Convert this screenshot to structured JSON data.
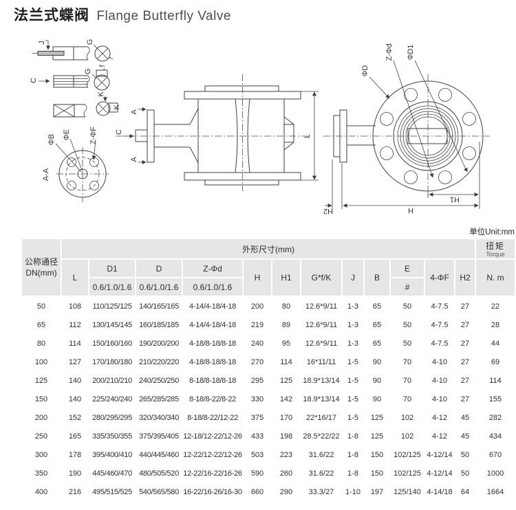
{
  "page": {
    "title_zh": "法兰式蝶阀",
    "title_en": "Flange Butterfly Valve",
    "unit_note": "单位Unit:mm"
  },
  "drawing": {
    "labels": {
      "j": "J",
      "g": "G",
      "c": "C",
      "f": "f",
      "k": "K",
      "phi_b": "ΦB",
      "phi_e": "ΦE",
      "z_phi_f": "Z-ΦF",
      "section": "A-A",
      "a": "A",
      "l": "L",
      "phi_d": "ΦD",
      "z_phi_d": "Z-Φd",
      "phi_d1": "ΦD1",
      "h": "H",
      "h1": "H1",
      "h2": "H2"
    }
  },
  "table": {
    "headers": {
      "dn_zh": "公称通径",
      "dn_en": "DN(mm)",
      "outline": "外形尺寸(mm)",
      "torque_zh": "扭矩",
      "torque_en": "Torque",
      "l": "L",
      "d1": "D1",
      "d": "D",
      "z_phi_d": "Z-Φd",
      "pn": "0.6/1.0/1.6",
      "h": "H",
      "h1": "H1",
      "gfk": "G*f/K",
      "j": "J",
      "b": "B",
      "e": "E",
      "hash": "#",
      "f4": "4-ΦF",
      "h2": "H2",
      "nm": "N. m"
    },
    "rows": [
      [
        "50",
        "108",
        "110/125/125",
        "140/165/165",
        "4-14/4-18/4-18",
        "200",
        "80",
        "12.6*9/11",
        "1-3",
        "65",
        "50",
        "4-7.5",
        "27",
        "22"
      ],
      [
        "65",
        "112",
        "130/145/145",
        "160/185/185",
        "4-14/4-18/4-18",
        "219",
        "89",
        "12.6*9/11",
        "1-3",
        "65",
        "50",
        "4-7.5",
        "27",
        "28"
      ],
      [
        "80",
        "114",
        "150/160/160",
        "190/200/200",
        "4-18/8-18/8-18",
        "240",
        "95",
        "12.6*9/11",
        "1-3",
        "65",
        "50",
        "4-7.5",
        "27",
        "44"
      ],
      [
        "100",
        "127",
        "170/180/180",
        "210/220/220",
        "4-18/8-18/8-18",
        "270",
        "114",
        "16*11/11",
        "1-5",
        "90",
        "70",
        "4-10",
        "27",
        "69"
      ],
      [
        "125",
        "140",
        "200/210/210",
        "240/250/250",
        "8-18/8-18/8-18",
        "295",
        "125",
        "18.9*13/14",
        "1-5",
        "90",
        "70",
        "4-10",
        "27",
        "114"
      ],
      [
        "150",
        "140",
        "225/240/240",
        "265/285/285",
        "8-18/8-22/8-22",
        "330",
        "142",
        "18.9*13/14",
        "1-5",
        "90",
        "70",
        "4-10",
        "27",
        "155"
      ],
      [
        "200",
        "152",
        "280/295/295",
        "320/340/340",
        "8-18/8-22/12-22",
        "375",
        "170",
        "22*16/17",
        "1-5",
        "125",
        "102",
        "4-12",
        "45",
        "282"
      ],
      [
        "250",
        "165",
        "335/350/355",
        "375/395/405",
        "12-18/12-22/12-26",
        "433",
        "198",
        "28.5*22/22",
        "1-8",
        "125",
        "102",
        "4-12",
        "45",
        "434"
      ],
      [
        "300",
        "178",
        "395/400/410",
        "440/445/460",
        "12-22/12-22/12-26",
        "503",
        "223",
        "31.6/22",
        "1-8",
        "150",
        "102/125",
        "4-12/14",
        "50",
        "670"
      ],
      [
        "350",
        "190",
        "445/460/470",
        "480/505/520",
        "12-22/16-22/16-26",
        "590",
        "260",
        "31.6/22",
        "1-8",
        "150",
        "102/125",
        "4-12/14",
        "50",
        "1000"
      ],
      [
        "400",
        "216",
        "495/515/525",
        "540/565/580",
        "16-22/16-26/16-30",
        "660",
        "290",
        "33.3/27",
        "1-10",
        "197",
        "125/140",
        "4-14/18",
        "64",
        "1664"
      ]
    ]
  }
}
